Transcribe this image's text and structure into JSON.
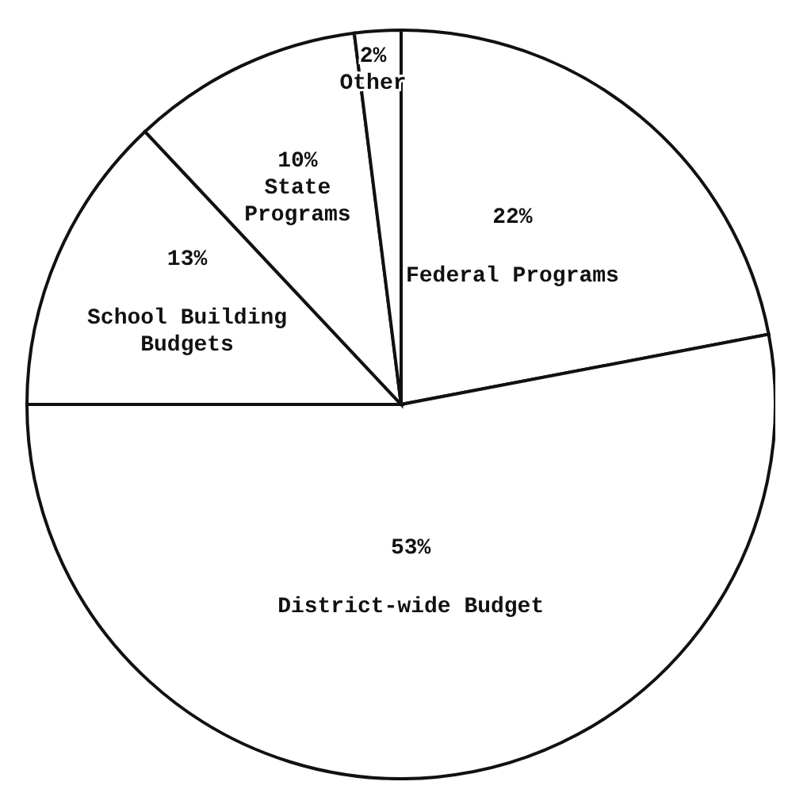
{
  "chart_data": {
    "type": "pie",
    "categories": [
      "Federal Programs",
      "District-wide Budget",
      "School Building Budgets",
      "State Programs",
      "Other"
    ],
    "values": [
      22,
      53,
      13,
      10,
      2
    ],
    "value_labels": [
      "22%",
      "53%",
      "13%",
      "10%",
      "2%"
    ],
    "colors": [
      "#ffffff",
      "#ffffff",
      "#ffffff",
      "#ffffff",
      "#ffffff"
    ]
  }
}
